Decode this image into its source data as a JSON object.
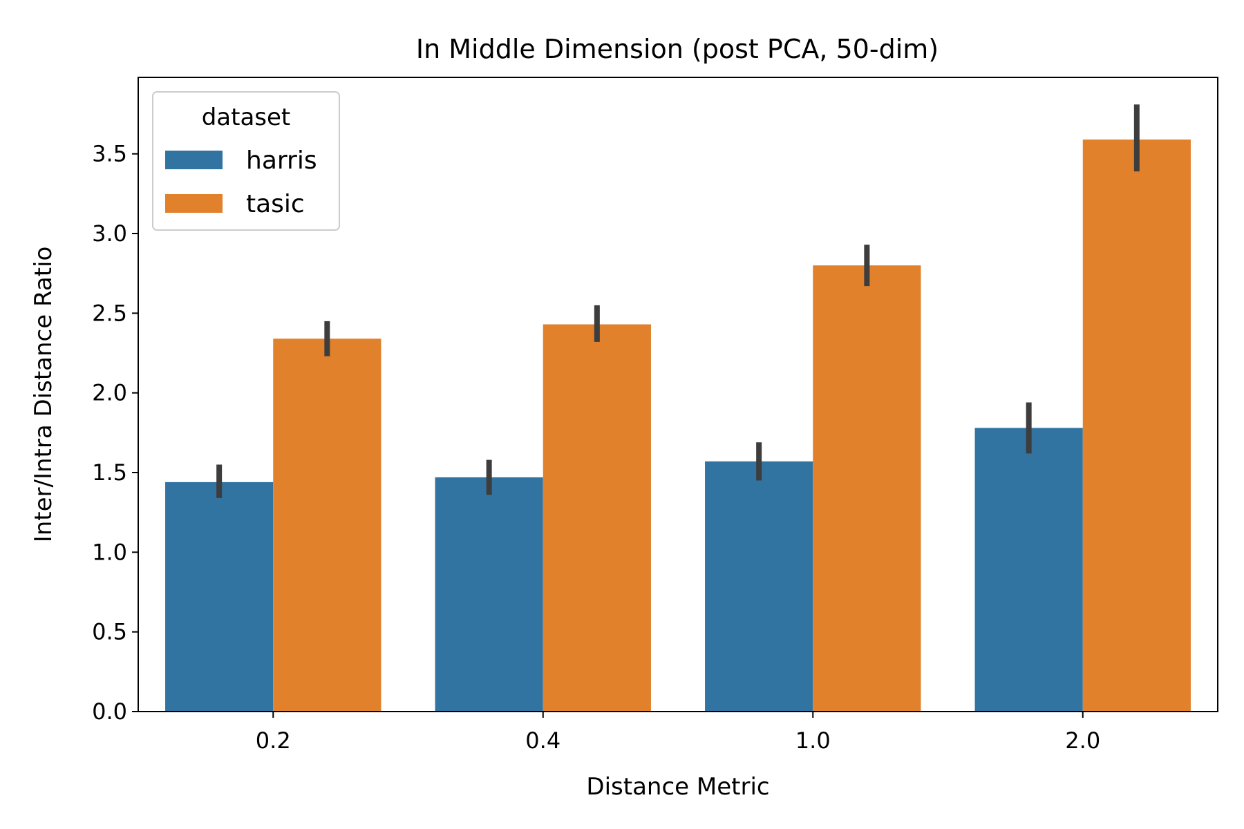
{
  "chart_data": {
    "type": "bar",
    "title": "In Middle Dimension (post PCA, 50-dim)",
    "xlabel": "Distance Metric",
    "ylabel": "Inter/Intra Distance Ratio",
    "categories": [
      "0.2",
      "0.4",
      "1.0",
      "2.0"
    ],
    "ylim": [
      0,
      3.98
    ],
    "yticks": [
      "0.0",
      "0.5",
      "1.0",
      "1.5",
      "2.0",
      "2.5",
      "3.0",
      "3.5"
    ],
    "grid": false,
    "legend": {
      "title": "dataset",
      "placement": "top-left"
    },
    "series": [
      {
        "name": "harris",
        "color": "#3274a1",
        "values": [
          1.44,
          1.47,
          1.57,
          1.78
        ],
        "error_low": [
          1.34,
          1.36,
          1.45,
          1.62
        ],
        "error_high": [
          1.55,
          1.58,
          1.69,
          1.94
        ]
      },
      {
        "name": "tasic",
        "color": "#e1812c",
        "values": [
          2.34,
          2.43,
          2.8,
          3.59
        ],
        "error_low": [
          2.23,
          2.32,
          2.67,
          3.39
        ],
        "error_high": [
          2.45,
          2.55,
          2.93,
          3.81
        ]
      }
    ],
    "errorbar_color": "#3d3d3d"
  }
}
